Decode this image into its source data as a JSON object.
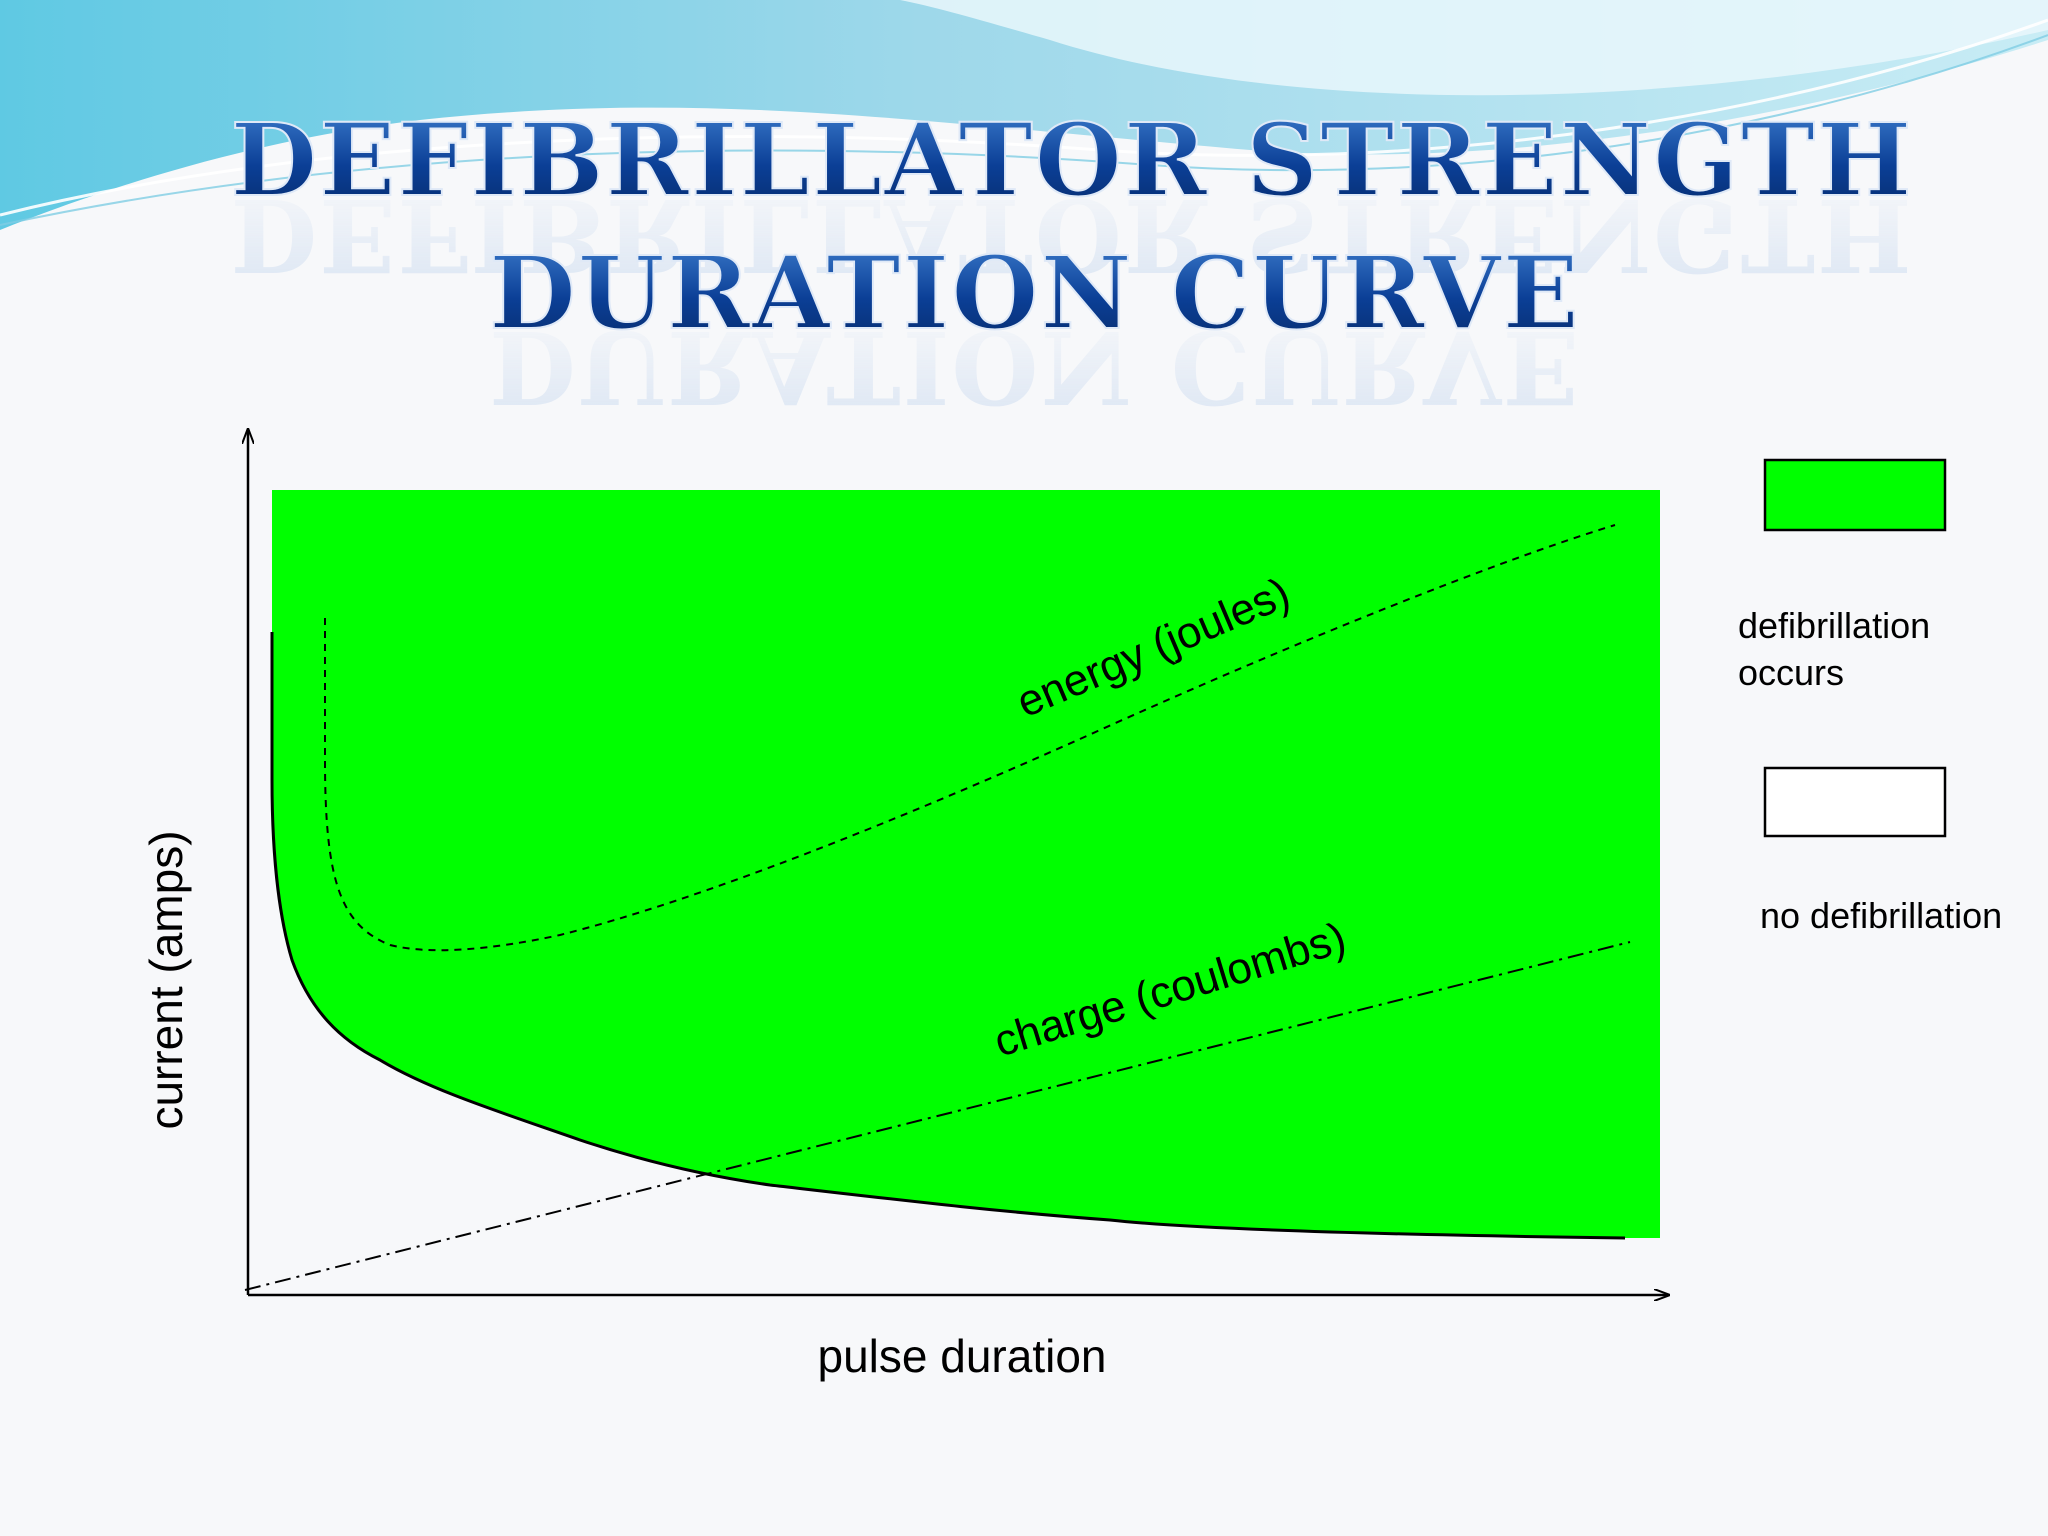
{
  "slide": {
    "title_line_1": "DEFIBRILLATOR STRENGTH",
    "title_line_2": "DURATION CURVE"
  },
  "diagram": {
    "x_axis_label": "pulse duration",
    "y_axis_label": "current (amps)",
    "curve_labels": {
      "energy": "energy (joules)",
      "charge": "charge (coulombs)"
    },
    "legend": [
      {
        "label_line_1": "defibrillation",
        "label_line_2": "occurs",
        "color": "#00ff00"
      },
      {
        "label_line_1": "no defibrillation",
        "label_line_2": "",
        "color": "#ffffff"
      }
    ]
  },
  "colors": {
    "fill_green": "#00ff00",
    "title_blue": "#0b3f96",
    "background": "#f7f8fa"
  }
}
